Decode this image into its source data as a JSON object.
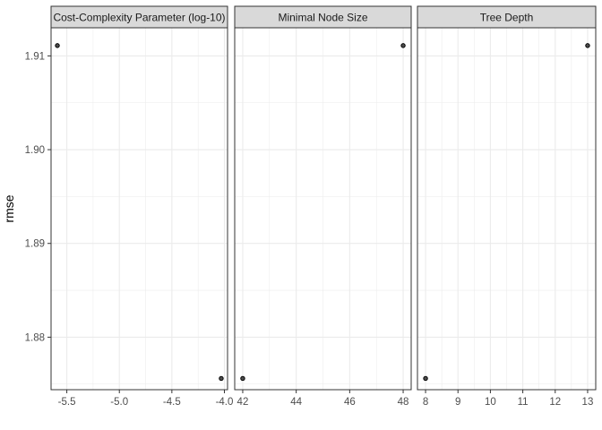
{
  "chart_data": {
    "type": "scatter",
    "ylabel": "rmse",
    "ylim": [
      1.8744,
      1.913
    ],
    "yticks": [
      1.88,
      1.89,
      1.9,
      1.91
    ],
    "ytick_labels": [
      "1.88",
      "1.89",
      "1.90",
      "1.91"
    ],
    "grid": true,
    "colors": {
      "point_fill": "#4d4d4d",
      "point_stroke": "#000000",
      "strip_bg": "#d9d9d9",
      "grid": "#ebebeb",
      "frame": "#333333"
    },
    "panels": [
      {
        "title": "Cost-Complexity Parameter (log-10)",
        "xlim": [
          -5.65,
          -3.97
        ],
        "xticks": [
          -5.5,
          -5.0,
          -4.5,
          -4.0
        ],
        "xtick_labels": [
          "-5.5",
          "-5.0",
          "-4.5",
          "-4.0"
        ],
        "points": [
          {
            "x": -5.59,
            "y": 1.9111
          },
          {
            "x": -4.03,
            "y": 1.8756
          }
        ]
      },
      {
        "title": "Minimal Node Size",
        "xlim": [
          41.7,
          48.3
        ],
        "xticks": [
          42,
          44,
          46,
          48
        ],
        "xtick_labels": [
          "42",
          "44",
          "46",
          "48"
        ],
        "points": [
          {
            "x": 48,
            "y": 1.9111
          },
          {
            "x": 42,
            "y": 1.8756
          }
        ]
      },
      {
        "title": "Tree Depth",
        "xlim": [
          7.75,
          13.25
        ],
        "xticks": [
          8,
          9,
          10,
          11,
          12,
          13
        ],
        "xtick_labels": [
          "8",
          "9",
          "10",
          "11",
          "12",
          "13"
        ],
        "points": [
          {
            "x": 13,
            "y": 1.9111
          },
          {
            "x": 8,
            "y": 1.8756
          }
        ]
      }
    ]
  }
}
